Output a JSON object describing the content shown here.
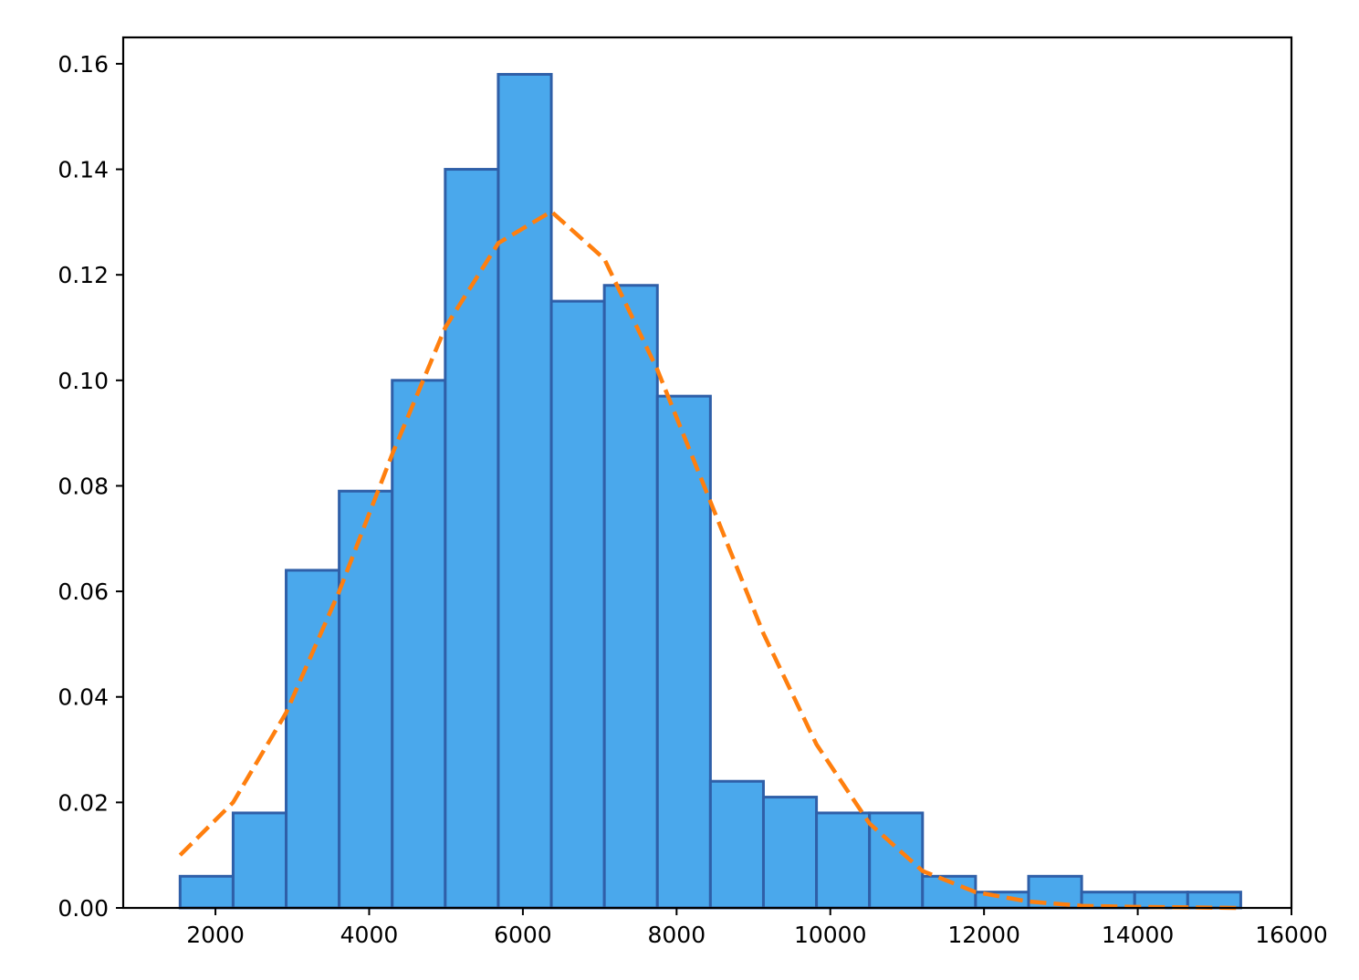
{
  "chart_data": {
    "type": "bar",
    "histogram": true,
    "xlim": [
      800,
      16000
    ],
    "ylim": [
      0,
      0.165
    ],
    "x_ticks": [
      2000,
      4000,
      6000,
      8000,
      10000,
      12000,
      14000,
      16000
    ],
    "x_tick_labels": [
      "2000",
      "4000",
      "6000",
      "8000",
      "10000",
      "12000",
      "14000",
      "16000"
    ],
    "y_ticks": [
      0,
      0.02,
      0.04,
      0.06,
      0.08,
      0.1,
      0.12,
      0.14,
      0.16
    ],
    "y_tick_labels": [
      "0.00",
      "0.02",
      "0.04",
      "0.06",
      "0.08",
      "0.10",
      "0.12",
      "0.14",
      "0.16"
    ],
    "bin_edges": [
      1540,
      2230,
      2920,
      3610,
      4300,
      4990,
      5680,
      6370,
      7060,
      7750,
      8440,
      9130,
      9820,
      10510,
      11200,
      11890,
      12580,
      13270,
      13960,
      14650,
      15340
    ],
    "values": [
      0.006,
      0.018,
      0.064,
      0.079,
      0.1,
      0.14,
      0.158,
      0.115,
      0.118,
      0.097,
      0.024,
      0.021,
      0.018,
      0.018,
      0.006,
      0.003,
      0.006,
      0.003,
      0.003,
      0.003
    ],
    "bar_color": "#4aa8ec",
    "bar_edge_color": "#2f5fa8",
    "fit_line": {
      "color": "#ff7f0e",
      "style": "dashed",
      "x": [
        1540,
        2230,
        2920,
        3610,
        4300,
        4990,
        5680,
        6370,
        7060,
        7750,
        8440,
        9130,
        9820,
        10510,
        11200,
        11890,
        12580,
        13270,
        13960,
        14650,
        15340
      ],
      "y": [
        0.01,
        0.02,
        0.037,
        0.06,
        0.086,
        0.11,
        0.126,
        0.132,
        0.123,
        0.102,
        0.077,
        0.052,
        0.031,
        0.016,
        0.007,
        0.003,
        0.0012,
        0.0004,
        0.0002,
        0.0001,
        0.0
      ]
    }
  }
}
